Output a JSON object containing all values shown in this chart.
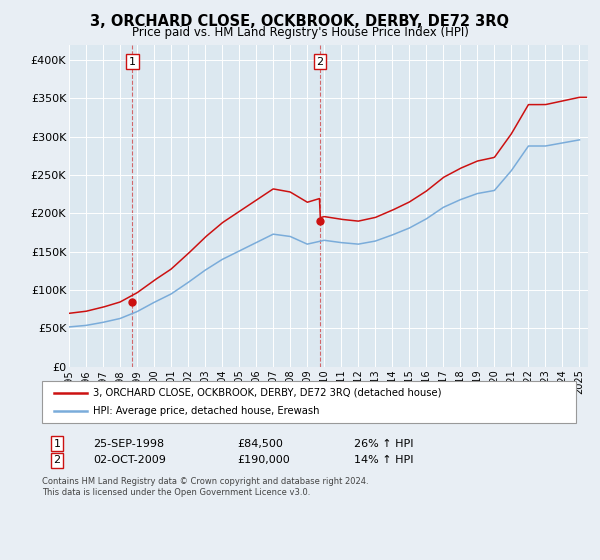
{
  "title": "3, ORCHARD CLOSE, OCKBROOK, DERBY, DE72 3RQ",
  "subtitle": "Price paid vs. HM Land Registry's House Price Index (HPI)",
  "background_color": "#e8eef4",
  "plot_bg_color": "#dce8f0",
  "red_label": "3, ORCHARD CLOSE, OCKBROOK, DERBY, DE72 3RQ (detached house)",
  "blue_label": "HPI: Average price, detached house, Erewash",
  "footer": "Contains HM Land Registry data © Crown copyright and database right 2024.\nThis data is licensed under the Open Government Licence v3.0.",
  "sale1_date": "25-SEP-1998",
  "sale1_price": 84500,
  "sale1_hpi": "26% ↑ HPI",
  "sale1_x": 1998.73,
  "sale2_date": "02-OCT-2009",
  "sale2_price": 190000,
  "sale2_hpi": "14% ↑ HPI",
  "sale2_x": 2009.75,
  "ylim_min": 0,
  "ylim_max": 420000,
  "xlim_min": 1995.0,
  "xlim_max": 2025.5,
  "yticks": [
    0,
    50000,
    100000,
    150000,
    200000,
    250000,
    300000,
    350000,
    400000
  ],
  "ytick_labels": [
    "£0",
    "£50K",
    "£100K",
    "£150K",
    "£200K",
    "£250K",
    "£300K",
    "£350K",
    "£400K"
  ],
  "xticks": [
    1995,
    1996,
    1997,
    1998,
    1999,
    2000,
    2001,
    2002,
    2003,
    2004,
    2005,
    2006,
    2007,
    2008,
    2009,
    2010,
    2011,
    2012,
    2013,
    2014,
    2015,
    2016,
    2017,
    2018,
    2019,
    2020,
    2021,
    2022,
    2023,
    2024,
    2025
  ],
  "hpi_years": [
    1995,
    1996,
    1997,
    1998,
    1999,
    2000,
    2001,
    2002,
    2003,
    2004,
    2005,
    2006,
    2007,
    2008,
    2009,
    2010,
    2011,
    2012,
    2013,
    2014,
    2015,
    2016,
    2017,
    2018,
    2019,
    2020,
    2021,
    2022,
    2023,
    2024,
    2025
  ],
  "hpi_values": [
    52000,
    54000,
    58000,
    63000,
    72000,
    84000,
    95000,
    110000,
    126000,
    140000,
    151000,
    162000,
    173000,
    170000,
    160000,
    165000,
    162000,
    160000,
    164000,
    172000,
    181000,
    193000,
    208000,
    218000,
    226000,
    230000,
    256000,
    288000,
    288000,
    292000,
    296000
  ],
  "sale1_hpi_value": 63000,
  "sale2_hpi_value": 160000
}
